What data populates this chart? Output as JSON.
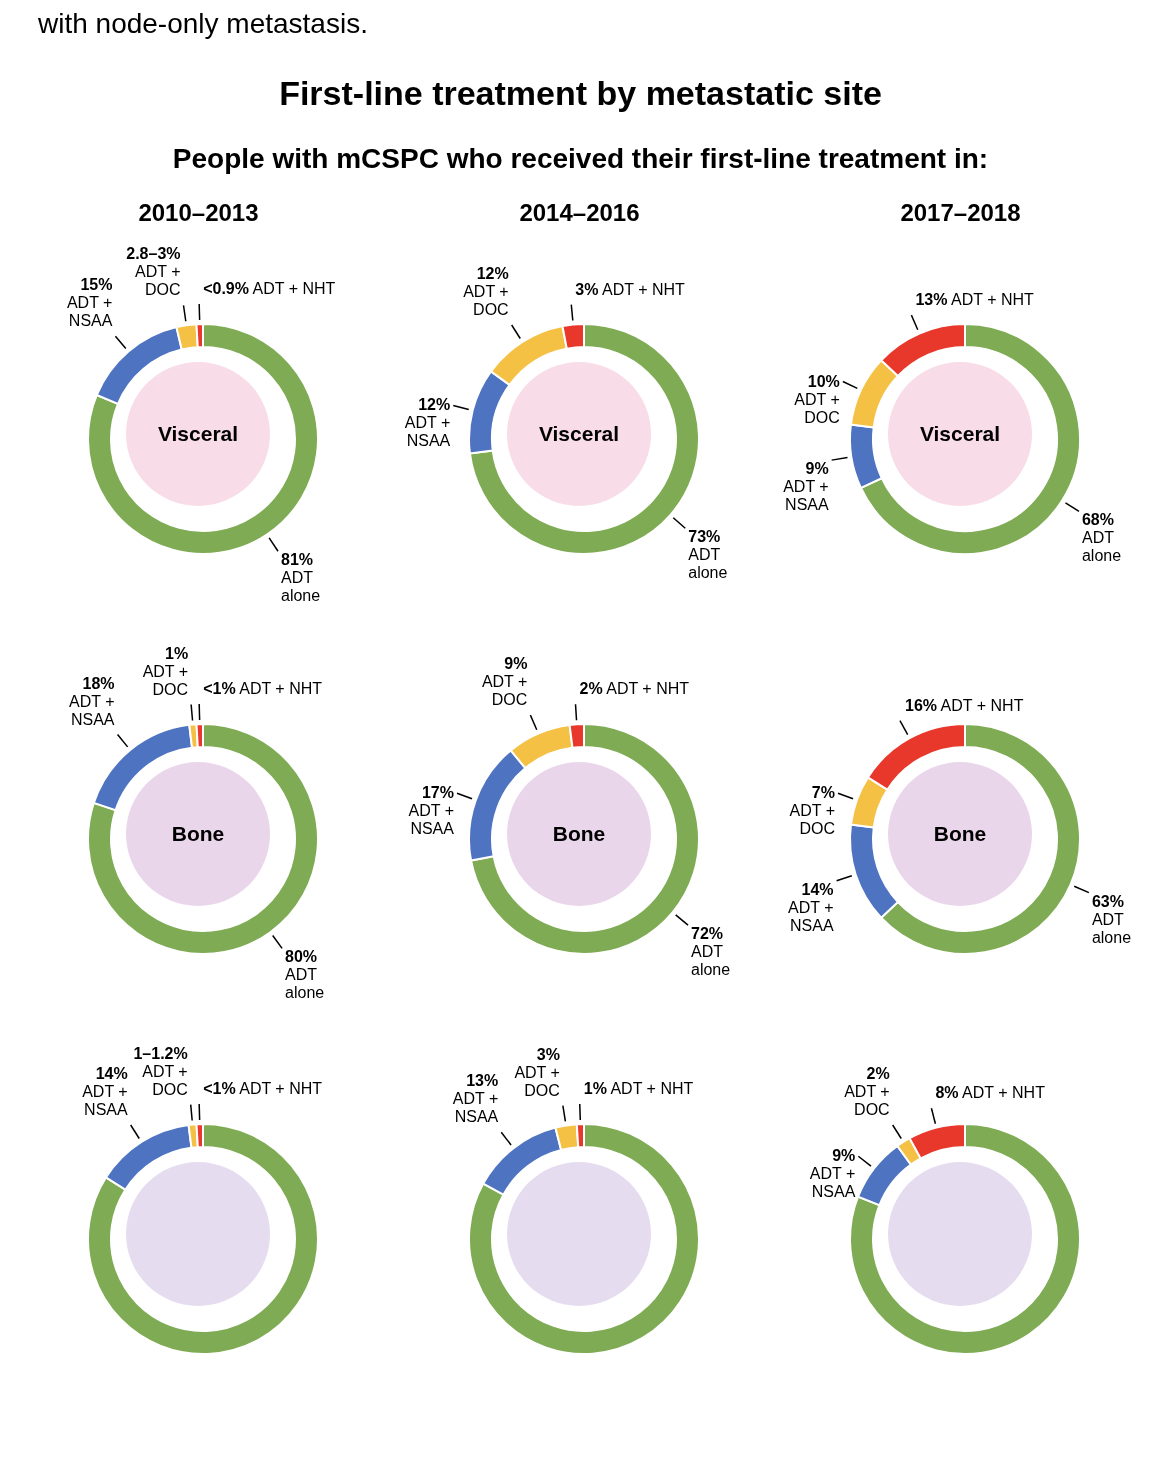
{
  "chart_data": [
    {
      "type": "donut",
      "annotations": [
        "with node-only metastasis.",
        "First-line treatment by metastatic site",
        "People with mCSPC who received their first-line treatment in:"
      ],
      "title": "2010–2013",
      "xlabel": "Visceral",
      "categories": [
        "ADT alone",
        "ADT + NSAA",
        "ADT + DOC",
        "ADT + NHT"
      ],
      "values": [
        81,
        15,
        2.8,
        0.9
      ],
      "value_labels": [
        "81%",
        "15%",
        "2.8–3%",
        "<0.9%"
      ],
      "colors": [
        "#7eab53",
        "#4e73c1",
        "#f5c144",
        "#e8372b"
      ]
    },
    {
      "type": "donut",
      "title": "2014–2016",
      "xlabel": "Visceral",
      "categories": [
        "ADT alone",
        "ADT + NSAA",
        "ADT + DOC",
        "ADT + NHT"
      ],
      "values": [
        73,
        12,
        12,
        3
      ],
      "value_labels": [
        "73%",
        "12%",
        "12%",
        "3%"
      ],
      "colors": [
        "#7eab53",
        "#4e73c1",
        "#f5c144",
        "#e8372b"
      ]
    },
    {
      "type": "donut",
      "title": "2017–2018",
      "xlabel": "Visceral",
      "categories": [
        "ADT alone",
        "ADT + NSAA",
        "ADT + DOC",
        "ADT + NHT"
      ],
      "values": [
        68,
        9,
        10,
        13
      ],
      "value_labels": [
        "68%",
        "9%",
        "10%",
        "13%"
      ],
      "colors": [
        "#7eab53",
        "#4e73c1",
        "#f5c144",
        "#e8372b"
      ]
    },
    {
      "type": "donut",
      "xlabel": "Bone",
      "categories": [
        "ADT alone",
        "ADT + NSAA",
        "ADT + DOC",
        "ADT + NHT"
      ],
      "values": [
        80,
        18,
        1,
        0.9
      ],
      "value_labels": [
        "80%",
        "18%",
        "1%",
        "<1%"
      ],
      "colors": [
        "#7eab53",
        "#4e73c1",
        "#f5c144",
        "#e8372b"
      ]
    },
    {
      "type": "donut",
      "xlabel": "Bone",
      "categories": [
        "ADT alone",
        "ADT + NSAA",
        "ADT + DOC",
        "ADT + NHT"
      ],
      "values": [
        72,
        17,
        9,
        2
      ],
      "value_labels": [
        "72%",
        "17%",
        "9%",
        "2%"
      ],
      "colors": [
        "#7eab53",
        "#4e73c1",
        "#f5c144",
        "#e8372b"
      ]
    },
    {
      "type": "donut",
      "xlabel": "Bone",
      "categories": [
        "ADT alone",
        "ADT + NSAA",
        "ADT + DOC",
        "ADT + NHT"
      ],
      "values": [
        63,
        14,
        7,
        16
      ],
      "value_labels": [
        "63%",
        "14%",
        "7%",
        "16%"
      ],
      "colors": [
        "#7eab53",
        "#4e73c1",
        "#f5c144",
        "#e8372b"
      ]
    },
    {
      "type": "donut",
      "categories": [
        null,
        "ADT + NSAA",
        "ADT + DOC",
        "ADT + NHT"
      ],
      "values": [
        84,
        14,
        1.1,
        0.9
      ],
      "value_labels": [
        null,
        "14%",
        "1–1.2%",
        "<1%"
      ],
      "colors": [
        "#7eab53",
        "#4e73c1",
        "#f5c144",
        "#e8372b"
      ]
    },
    {
      "type": "donut",
      "categories": [
        null,
        "ADT + NSAA",
        "ADT + DOC",
        "ADT + NHT"
      ],
      "values": [
        83,
        13,
        3,
        1
      ],
      "value_labels": [
        null,
        "13%",
        "3%",
        "1%"
      ],
      "colors": [
        "#7eab53",
        "#4e73c1",
        "#f5c144",
        "#e8372b"
      ]
    },
    {
      "type": "donut",
      "categories": [
        null,
        "ADT + NSAA",
        "ADT + DOC",
        "ADT + NHT"
      ],
      "values": [
        81,
        9,
        2,
        8
      ],
      "value_labels": [
        null,
        "9%",
        "2%",
        "8%"
      ],
      "colors": [
        "#7eab53",
        "#4e73c1",
        "#f5c144",
        "#e8372b"
      ]
    }
  ]
}
